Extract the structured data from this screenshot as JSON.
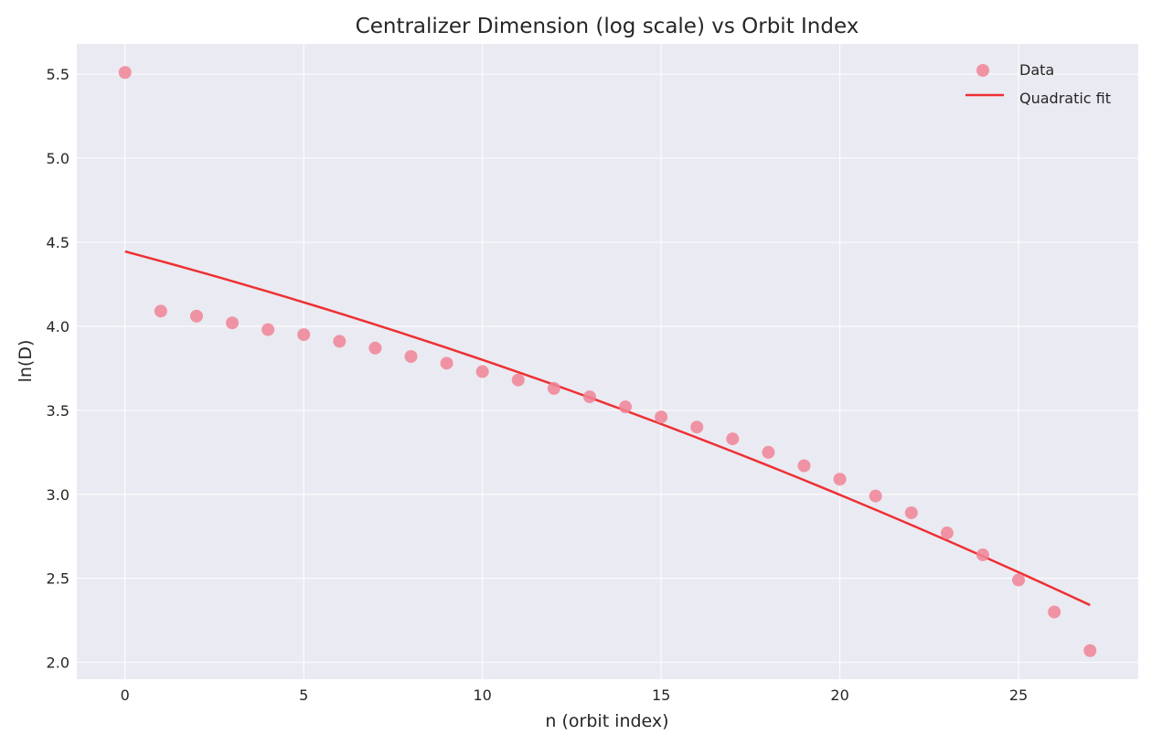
{
  "chart_data": {
    "type": "scatter",
    "title": "Centralizer Dimension (log scale) vs Orbit Index",
    "xlabel": "n (orbit index)",
    "ylabel": "ln(D)",
    "xlim": [
      -1.35,
      28.35
    ],
    "ylim": [
      1.9,
      5.68
    ],
    "xticks": [
      0,
      5,
      10,
      15,
      20,
      25
    ],
    "yticks": [
      2.0,
      2.5,
      3.0,
      3.5,
      4.0,
      4.5,
      5.0,
      5.5
    ],
    "grid": true,
    "legend_position": "top-right",
    "series": [
      {
        "name": "Data",
        "kind": "scatter",
        "color": "#f08497",
        "x": [
          0,
          1,
          2,
          3,
          4,
          5,
          6,
          7,
          8,
          9,
          10,
          11,
          12,
          13,
          14,
          15,
          16,
          17,
          18,
          19,
          20,
          21,
          22,
          23,
          24,
          25,
          26,
          27
        ],
        "y": [
          5.51,
          4.09,
          4.06,
          4.02,
          3.98,
          3.95,
          3.91,
          3.87,
          3.82,
          3.78,
          3.73,
          3.68,
          3.63,
          3.58,
          3.52,
          3.46,
          3.4,
          3.33,
          3.25,
          3.17,
          3.09,
          2.99,
          2.89,
          2.77,
          2.64,
          2.49,
          2.3,
          2.07
        ]
      },
      {
        "name": "Quadratic fit",
        "kind": "line",
        "color": "#ee3033",
        "coefficients": {
          "a": -0.00079,
          "b": -0.0566,
          "c": 4.445
        },
        "x_range": [
          0,
          27
        ]
      }
    ]
  }
}
